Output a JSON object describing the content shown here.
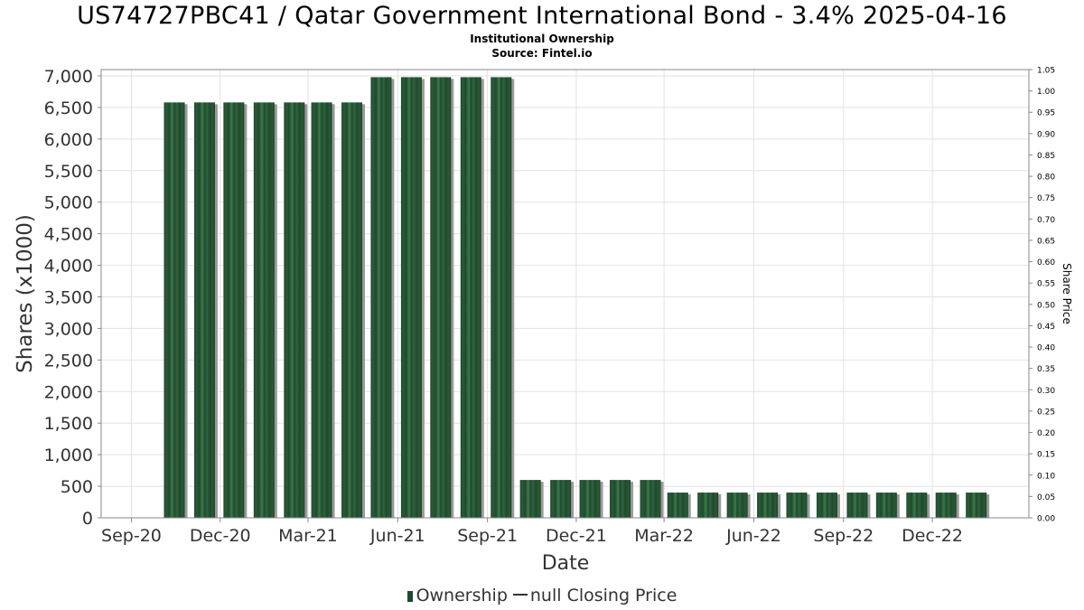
{
  "title": "US74727PBC41 / Qatar Government International Bond - 3.4% 2025-04-16",
  "subtitle": "Institutional Ownership",
  "source": "Source: Fintel.io",
  "legend": {
    "ownership": "Ownership",
    "closing_price": "null Closing Price"
  },
  "colors": {
    "bar": "#1f4a2c",
    "bar_light": "#3d7a4d",
    "bar_shadow": "#9a9a9a"
  },
  "chart_data": {
    "type": "bar",
    "xlabel": "Date",
    "ylabel": "Shares (x1000)",
    "y2label": "Share Price",
    "ylim": [
      0,
      7100
    ],
    "y2lim": [
      0,
      1.05
    ],
    "grid": true,
    "legend_position": "bottom",
    "x_ticks": [
      "Sep-20",
      "Dec-20",
      "Mar-21",
      "Jun-21",
      "Sep-21",
      "Dec-21",
      "Mar-22",
      "Jun-22",
      "Sep-22",
      "Dec-22"
    ],
    "y_ticks": [
      "0",
      "500",
      "1,000",
      "1,500",
      "2,000",
      "2,500",
      "3,000",
      "3,500",
      "4,000",
      "4,500",
      "5,000",
      "5,500",
      "6,000",
      "6,500",
      "7,000"
    ],
    "y2_ticks": [
      "0.00",
      "0.05",
      "0.10",
      "0.15",
      "0.20",
      "0.25",
      "0.30",
      "0.35",
      "0.40",
      "0.45",
      "0.50",
      "0.55",
      "0.60",
      "0.65",
      "0.70",
      "0.75",
      "0.80",
      "0.85",
      "0.90",
      "0.95",
      "1.00",
      "1.05"
    ],
    "series": [
      {
        "name": "Ownership",
        "x": [
          "2020-10-15",
          "2020-11-15",
          "2020-12-15",
          "2021-01-15",
          "2021-02-15",
          "2021-03-15",
          "2021-04-15",
          "2021-05-15",
          "2021-06-15",
          "2021-07-15",
          "2021-08-15",
          "2021-09-15",
          "2021-10-15",
          "2021-11-15",
          "2021-12-15",
          "2022-01-15",
          "2022-02-15",
          "2022-03-15",
          "2022-04-15",
          "2022-05-15",
          "2022-06-15",
          "2022-07-15",
          "2022-08-15",
          "2022-09-15",
          "2022-10-15",
          "2022-11-15",
          "2022-12-15",
          "2023-01-15"
        ],
        "values": [
          6580,
          6580,
          6580,
          6580,
          6580,
          6580,
          6580,
          6980,
          6980,
          6980,
          6980,
          6980,
          600,
          600,
          600,
          600,
          600,
          400,
          400,
          400,
          400,
          400,
          400,
          400,
          400,
          400,
          400,
          400
        ]
      }
    ]
  }
}
